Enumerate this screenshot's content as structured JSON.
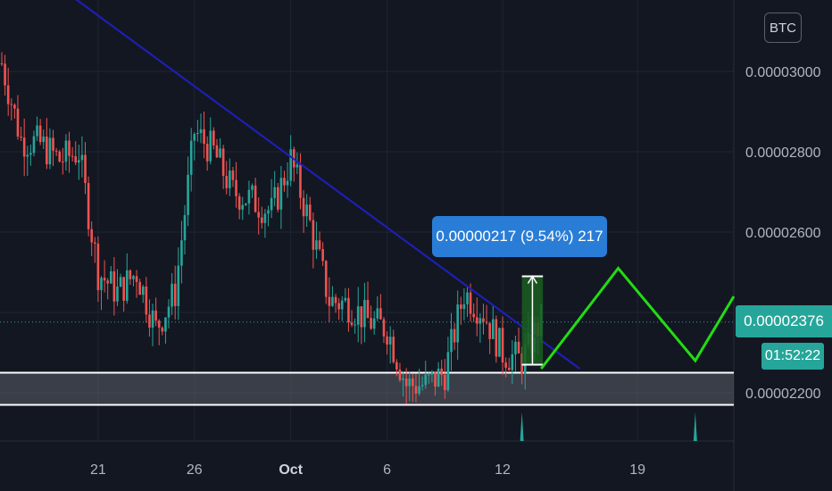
{
  "currency": "BTC",
  "last_price": "0.00002376",
  "countdown": "01:52:22",
  "measure_label": "0.00000217 (9.54%) 217",
  "colors": {
    "background": "#131722",
    "grid": "#1f2433",
    "up": "#26a69a",
    "down": "#ef5350",
    "trendline": "#1f1fbf",
    "projection": "#22dd11",
    "support_zone": "#6b6e78",
    "measure_fill": "#1b5e20",
    "tooltip": "#2a7dd6"
  },
  "icons": [
    "currency-badge",
    "price-arrow"
  ],
  "chart_data": {
    "type": "candlestick",
    "title": "",
    "xlabel": "",
    "ylabel": "",
    "x_ticks": [
      "21",
      "26",
      "Oct",
      "6",
      "12",
      "19"
    ],
    "y_ticks": [
      "0.00003000",
      "0.00002800",
      "0.00002600",
      "0.00002200"
    ],
    "ylim": [
      2.1e-05,
      3.16e-05
    ],
    "grid": true,
    "last_price": 2.376e-05,
    "price_close_path": [
      {
        "date": "2020-09-16",
        "price": 3.02e-05
      },
      {
        "date": "2020-09-17",
        "price": 2.83e-05
      },
      {
        "date": "2020-09-18",
        "price": 2.82e-05
      },
      {
        "date": "2020-09-19",
        "price": 2.78e-05
      },
      {
        "date": "2020-09-20",
        "price": 2.8e-05
      },
      {
        "date": "2020-09-21",
        "price": 2.5e-05
      },
      {
        "date": "2020-09-22",
        "price": 2.45e-05
      },
      {
        "date": "2020-09-23",
        "price": 2.5e-05
      },
      {
        "date": "2020-09-24",
        "price": 2.36e-05
      },
      {
        "date": "2020-09-25",
        "price": 2.45e-05
      },
      {
        "date": "2020-09-26",
        "price": 2.85e-05
      },
      {
        "date": "2020-09-27",
        "price": 2.8e-05
      },
      {
        "date": "2020-09-28",
        "price": 2.7e-05
      },
      {
        "date": "2020-09-29",
        "price": 2.68e-05
      },
      {
        "date": "2020-09-30",
        "price": 2.65e-05
      },
      {
        "date": "2020-10-01",
        "price": 2.78e-05
      },
      {
        "date": "2020-10-02",
        "price": 2.62e-05
      },
      {
        "date": "2020-10-03",
        "price": 2.43e-05
      },
      {
        "date": "2020-10-04",
        "price": 2.42e-05
      },
      {
        "date": "2020-10-05",
        "price": 2.38e-05
      },
      {
        "date": "2020-10-06",
        "price": 2.36e-05
      },
      {
        "date": "2020-10-07",
        "price": 2.22e-05
      },
      {
        "date": "2020-10-08",
        "price": 2.22e-05
      },
      {
        "date": "2020-10-09",
        "price": 2.25e-05
      },
      {
        "date": "2020-10-10",
        "price": 2.45e-05
      },
      {
        "date": "2020-10-11",
        "price": 2.4e-05
      },
      {
        "date": "2020-10-12",
        "price": 2.3e-05
      },
      {
        "date": "2020-10-13",
        "price": 2.28e-05
      },
      {
        "date": "2020-10-14",
        "price": 2.38e-05
      }
    ],
    "support_zone": [
      2.17e-05,
      2.25e-05
    ],
    "trendline": {
      "from": {
        "date": "2020-09-15",
        "price": 3.35e-05
      },
      "to": {
        "date": "2020-10-16",
        "price": 2.26e-05
      }
    },
    "projection": [
      {
        "date": "2020-10-14",
        "price": 2.26e-05
      },
      {
        "date": "2020-10-18",
        "price": 2.51e-05
      },
      {
        "date": "2020-10-22",
        "price": 2.28e-05
      },
      {
        "date": "2020-10-24",
        "price": 2.44e-05
      }
    ],
    "measure": {
      "from": 2.27e-05,
      "to": 2.49e-05,
      "label": "0.00000217 (9.54%) 217"
    }
  }
}
